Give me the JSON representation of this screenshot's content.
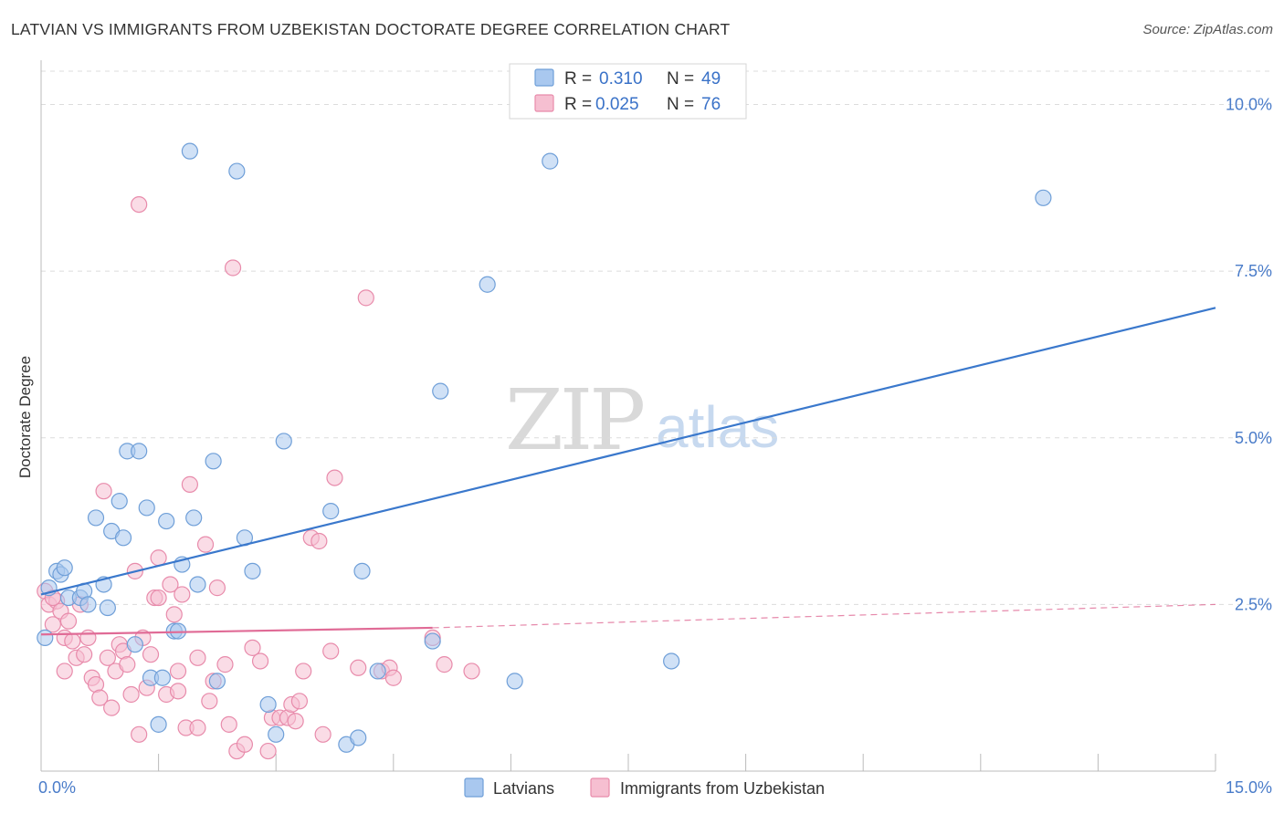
{
  "title": "LATVIAN VS IMMIGRANTS FROM UZBEKISTAN DOCTORATE DEGREE CORRELATION CHART",
  "source": "Source: ZipAtlas.com",
  "watermark": {
    "zip": "ZIP",
    "atlas": "atlas"
  },
  "colors": {
    "blue_fill": "#a9c8ef",
    "blue_stroke": "#6f9fd8",
    "blue_line": "#3a78cc",
    "pink_fill": "#f6bfd1",
    "pink_stroke": "#e88bab",
    "pink_line": "#e06b96",
    "grid": "#dcdcdc",
    "axis_tick": "#4a7cc9"
  },
  "legend": {
    "rows": [
      {
        "r_label": "R = ",
        "r_value": "0.310",
        "n_label": "N = ",
        "n_value": "49"
      },
      {
        "r_label": "R = ",
        "r_value": "0.025",
        "n_label": "N = ",
        "n_value": "76"
      }
    ]
  },
  "bottom_legend": [
    "Latvians",
    "Immigrants from Uzbekistan"
  ],
  "chart_data": {
    "type": "scatter",
    "title": "LATVIAN VS IMMIGRANTS FROM UZBEKISTAN DOCTORATE DEGREE CORRELATION CHART",
    "xlabel": "",
    "ylabel": "Doctorate Degree",
    "xlim": [
      0,
      15
    ],
    "ylim": [
      0,
      10.5
    ],
    "x_ticks": [
      0,
      1.5,
      3,
      4.5,
      6,
      7.5,
      9,
      10.5,
      12,
      13.5,
      15
    ],
    "x_tick_labels": [
      "0.0%",
      "15.0%"
    ],
    "y_ticks": [
      2.5,
      5.0,
      7.5,
      10.0
    ],
    "y_tick_labels": [
      "2.5%",
      "5.0%",
      "7.5%",
      "10.0%"
    ],
    "series": [
      {
        "name": "Latvians",
        "r": 0.31,
        "n": 49,
        "trend": {
          "x0": 0,
          "y0": 2.65,
          "x1": 15,
          "y1": 6.95
        },
        "points": [
          [
            0.05,
            2.0
          ],
          [
            0.1,
            2.75
          ],
          [
            0.2,
            3.0
          ],
          [
            0.25,
            2.95
          ],
          [
            0.3,
            3.05
          ],
          [
            0.35,
            2.6
          ],
          [
            0.5,
            2.6
          ],
          [
            0.55,
            2.7
          ],
          [
            0.6,
            2.5
          ],
          [
            0.7,
            3.8
          ],
          [
            0.8,
            2.8
          ],
          [
            0.85,
            2.45
          ],
          [
            0.9,
            3.6
          ],
          [
            1.0,
            4.05
          ],
          [
            1.05,
            3.5
          ],
          [
            1.1,
            4.8
          ],
          [
            1.2,
            1.9
          ],
          [
            1.25,
            4.8
          ],
          [
            1.35,
            3.95
          ],
          [
            1.4,
            1.4
          ],
          [
            1.5,
            0.7
          ],
          [
            1.55,
            1.4
          ],
          [
            1.6,
            3.75
          ],
          [
            1.7,
            2.1
          ],
          [
            1.75,
            2.1
          ],
          [
            1.8,
            3.1
          ],
          [
            1.9,
            9.3
          ],
          [
            1.95,
            3.8
          ],
          [
            2.0,
            2.8
          ],
          [
            2.2,
            4.65
          ],
          [
            2.25,
            1.35
          ],
          [
            2.5,
            9.0
          ],
          [
            2.6,
            3.5
          ],
          [
            2.7,
            3.0
          ],
          [
            2.9,
            1.0
          ],
          [
            3.0,
            0.55
          ],
          [
            3.1,
            4.95
          ],
          [
            3.7,
            3.9
          ],
          [
            3.9,
            0.4
          ],
          [
            4.05,
            0.5
          ],
          [
            4.1,
            3.0
          ],
          [
            4.3,
            1.5
          ],
          [
            5.0,
            1.95
          ],
          [
            5.1,
            5.7
          ],
          [
            5.7,
            7.3
          ],
          [
            6.05,
            1.35
          ],
          [
            6.5,
            9.15
          ],
          [
            8.05,
            1.65
          ],
          [
            12.8,
            8.6
          ]
        ]
      },
      {
        "name": "Immigrants from Uzbekistan",
        "r": 0.025,
        "n": 76,
        "trend": {
          "x0": 0,
          "y0": 2.05,
          "x1": 5.0,
          "y1": 2.15,
          "dash_to_x": 15,
          "dash_to_y": 2.5
        },
        "points": [
          [
            0.05,
            2.7
          ],
          [
            0.1,
            2.5
          ],
          [
            0.15,
            2.2
          ],
          [
            0.2,
            2.55
          ],
          [
            0.25,
            2.4
          ],
          [
            0.3,
            1.5
          ],
          [
            0.3,
            2.0
          ],
          [
            0.35,
            2.25
          ],
          [
            0.4,
            1.95
          ],
          [
            0.45,
            1.7
          ],
          [
            0.5,
            2.5
          ],
          [
            0.55,
            1.75
          ],
          [
            0.6,
            2.0
          ],
          [
            0.65,
            1.4
          ],
          [
            0.7,
            1.3
          ],
          [
            0.75,
            1.1
          ],
          [
            0.8,
            4.2
          ],
          [
            0.85,
            1.7
          ],
          [
            0.9,
            0.95
          ],
          [
            0.95,
            1.5
          ],
          [
            1.0,
            1.9
          ],
          [
            1.05,
            1.8
          ],
          [
            1.1,
            1.6
          ],
          [
            1.15,
            1.15
          ],
          [
            1.2,
            3.0
          ],
          [
            1.25,
            0.55
          ],
          [
            1.25,
            8.5
          ],
          [
            1.3,
            2.0
          ],
          [
            1.35,
            1.25
          ],
          [
            1.4,
            1.75
          ],
          [
            1.45,
            2.6
          ],
          [
            1.5,
            2.6
          ],
          [
            1.5,
            3.2
          ],
          [
            1.6,
            1.15
          ],
          [
            1.65,
            2.8
          ],
          [
            1.7,
            2.35
          ],
          [
            1.75,
            1.5
          ],
          [
            1.75,
            1.2
          ],
          [
            1.8,
            2.65
          ],
          [
            1.85,
            0.65
          ],
          [
            1.9,
            4.3
          ],
          [
            2.0,
            1.7
          ],
          [
            2.0,
            0.65
          ],
          [
            2.1,
            3.4
          ],
          [
            2.15,
            1.05
          ],
          [
            2.2,
            1.35
          ],
          [
            2.25,
            2.75
          ],
          [
            2.35,
            1.6
          ],
          [
            2.4,
            0.7
          ],
          [
            2.45,
            7.55
          ],
          [
            2.5,
            0.3
          ],
          [
            2.6,
            0.4
          ],
          [
            2.7,
            1.85
          ],
          [
            2.8,
            1.65
          ],
          [
            2.9,
            0.3
          ],
          [
            2.95,
            0.8
          ],
          [
            3.05,
            0.8
          ],
          [
            3.15,
            0.8
          ],
          [
            3.2,
            1.0
          ],
          [
            3.25,
            0.75
          ],
          [
            3.3,
            1.05
          ],
          [
            3.35,
            1.5
          ],
          [
            3.45,
            3.5
          ],
          [
            3.55,
            3.45
          ],
          [
            3.6,
            0.55
          ],
          [
            3.7,
            1.8
          ],
          [
            3.75,
            4.4
          ],
          [
            4.05,
            1.55
          ],
          [
            4.15,
            7.1
          ],
          [
            4.35,
            1.5
          ],
          [
            4.45,
            1.55
          ],
          [
            4.5,
            1.4
          ],
          [
            5.0,
            2.0
          ],
          [
            5.15,
            1.6
          ],
          [
            5.5,
            1.5
          ],
          [
            0.15,
            2.6
          ]
        ]
      }
    ]
  }
}
